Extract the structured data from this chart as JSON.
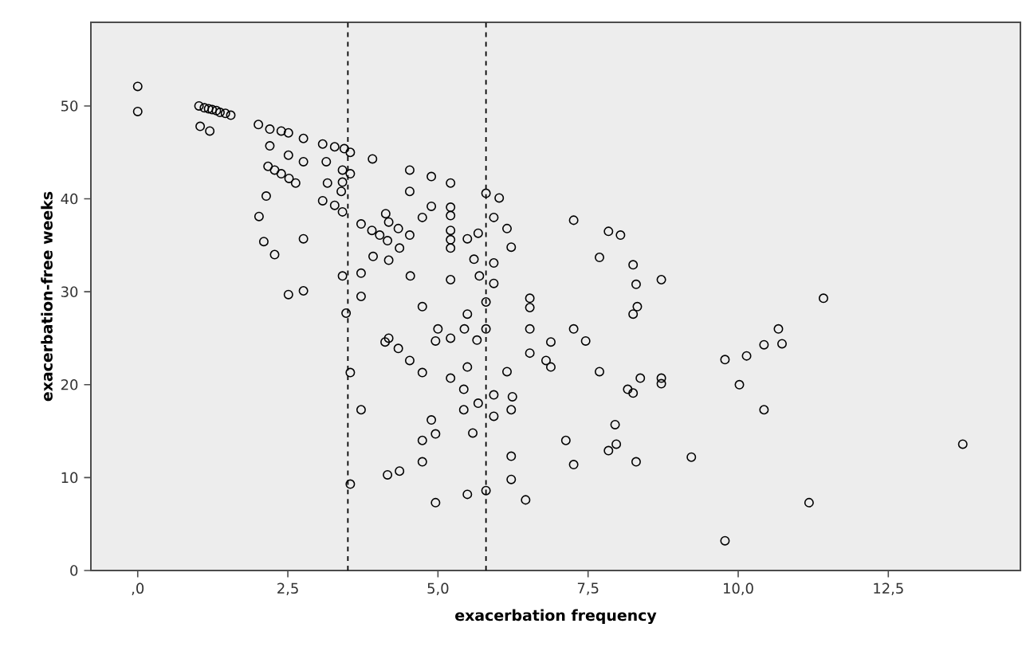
{
  "chart_data": {
    "type": "scatter",
    "xlabel": "exacerbation frequency",
    "ylabel": "exacerbation-free weeks",
    "xlim": [
      -0.78,
      14.7
    ],
    "ylim": [
      0,
      59
    ],
    "xticks": [
      {
        "value": 0,
        "label": ",0"
      },
      {
        "value": 2.5,
        "label": "2,5"
      },
      {
        "value": 5,
        "label": "5,0"
      },
      {
        "value": 7.5,
        "label": "7,5"
      },
      {
        "value": 10,
        "label": "10,0"
      },
      {
        "value": 12.5,
        "label": "12,5"
      }
    ],
    "yticks": [
      0,
      10,
      20,
      30,
      40,
      50
    ],
    "grid": false,
    "marker": "circle",
    "ref_lines": [
      {
        "axis": "x",
        "value": 3.5,
        "line_style": "dashed",
        "color": "#000000"
      },
      {
        "axis": "x",
        "value": 5.8,
        "line_style": "dashed",
        "color": "#000000"
      }
    ],
    "series": [
      {
        "color": "#000000",
        "x": [
          0,
          0,
          1.02,
          1.11,
          1.18,
          1.24,
          1.31,
          1.37,
          1.46,
          1.55,
          1.04,
          1.2,
          2.01,
          2.2,
          2.39,
          2.51,
          2.76,
          2.2,
          2.51,
          2.76,
          3.08,
          3.28,
          3.44,
          3.54,
          3.14,
          3.16,
          3.41,
          3.54,
          3.41,
          3.39,
          3.91,
          2.17,
          2.28,
          2.39,
          2.52,
          2.63,
          2.14,
          3.08,
          3.28,
          3.41,
          2.02,
          2.1,
          2.28,
          2.76,
          2.51,
          2.76,
          3.41,
          3.47,
          3.72,
          3.9,
          4.03,
          4.13,
          4.18,
          4.34,
          4.16,
          4.36,
          4.53,
          3.92,
          4.18,
          3.72,
          3.72,
          4.54,
          4.74,
          4.53,
          4.53,
          4.89,
          4.89,
          4.74,
          5.21,
          5.21,
          5.21,
          5.21,
          5.21,
          5.21,
          5.21,
          5.49,
          5.67,
          5.6,
          5.69,
          5.49,
          5.8,
          6.02,
          5.93,
          6.15,
          6.22,
          5.93,
          5.93,
          5.8,
          4.12,
          4.18,
          4.34,
          4.53,
          4.74,
          3.54,
          3.72,
          5.0,
          4.96,
          5.21,
          5.44,
          5.65,
          5.8,
          5.49,
          5.21,
          5.43,
          5.43,
          5.67,
          5.93,
          5.93,
          4.89,
          4.96,
          4.74,
          5.58,
          4.74,
          4.16,
          4.36,
          3.54,
          4.96,
          5.49,
          5.8,
          6.15,
          6.24,
          6.22,
          6.22,
          6.22,
          6.46,
          7.26,
          7.84,
          8.04,
          7.69,
          8.25,
          8.3,
          8.72,
          6.53,
          6.53,
          8.32,
          8.25,
          11.42,
          6.53,
          6.53,
          7.26,
          6.88,
          7.46,
          6.8,
          6.88,
          7.69,
          8.16,
          8.25,
          8.37,
          8.72,
          8.72,
          7.95,
          7.97,
          7.84,
          7.13,
          7.26,
          8.3,
          9.22,
          9.78,
          10.14,
          10.43,
          10.67,
          10.73,
          10.02,
          10.43,
          13.74,
          11.18,
          9.78
        ],
        "values": [
          52.1,
          49.4,
          50.0,
          49.8,
          49.7,
          49.6,
          49.5,
          49.3,
          49.2,
          49.0,
          47.8,
          47.3,
          48.0,
          47.5,
          47.3,
          47.1,
          46.5,
          45.7,
          44.7,
          44.0,
          45.9,
          45.6,
          45.4,
          45.0,
          44.0,
          41.7,
          43.1,
          42.7,
          41.8,
          40.8,
          44.3,
          43.5,
          43.1,
          42.7,
          42.2,
          41.7,
          40.3,
          39.8,
          39.3,
          38.6,
          38.1,
          35.4,
          34.0,
          35.7,
          29.7,
          30.1,
          31.7,
          27.7,
          37.3,
          36.6,
          36.1,
          38.4,
          37.5,
          36.8,
          35.5,
          34.7,
          36.1,
          33.8,
          33.4,
          32.0,
          29.5,
          31.7,
          28.4,
          43.1,
          40.8,
          42.4,
          39.2,
          38.0,
          41.7,
          39.1,
          38.2,
          36.6,
          35.6,
          34.7,
          31.3,
          35.7,
          36.3,
          33.5,
          31.7,
          27.6,
          40.6,
          40.1,
          38.0,
          36.8,
          34.8,
          33.1,
          30.9,
          28.9,
          24.6,
          25.0,
          23.9,
          22.6,
          21.3,
          21.3,
          17.3,
          26.0,
          24.7,
          25.0,
          26.0,
          24.8,
          26.0,
          21.9,
          20.7,
          19.5,
          17.3,
          18.0,
          18.9,
          16.6,
          16.2,
          14.7,
          14.0,
          14.8,
          11.7,
          10.3,
          10.7,
          9.3,
          7.3,
          8.2,
          8.6,
          21.4,
          18.7,
          17.3,
          12.3,
          9.8,
          7.6,
          37.7,
          36.5,
          36.1,
          33.7,
          32.9,
          30.8,
          31.3,
          29.3,
          28.3,
          28.4,
          27.6,
          29.3,
          26.0,
          23.4,
          26.0,
          24.6,
          24.7,
          22.6,
          21.9,
          21.4,
          19.5,
          19.1,
          20.7,
          20.7,
          20.1,
          15.7,
          13.6,
          12.9,
          14.0,
          11.4,
          11.7,
          12.2,
          22.7,
          23.1,
          24.3,
          26.0,
          24.4,
          20.0,
          17.3,
          13.6,
          7.3,
          3.2
        ]
      }
    ]
  }
}
